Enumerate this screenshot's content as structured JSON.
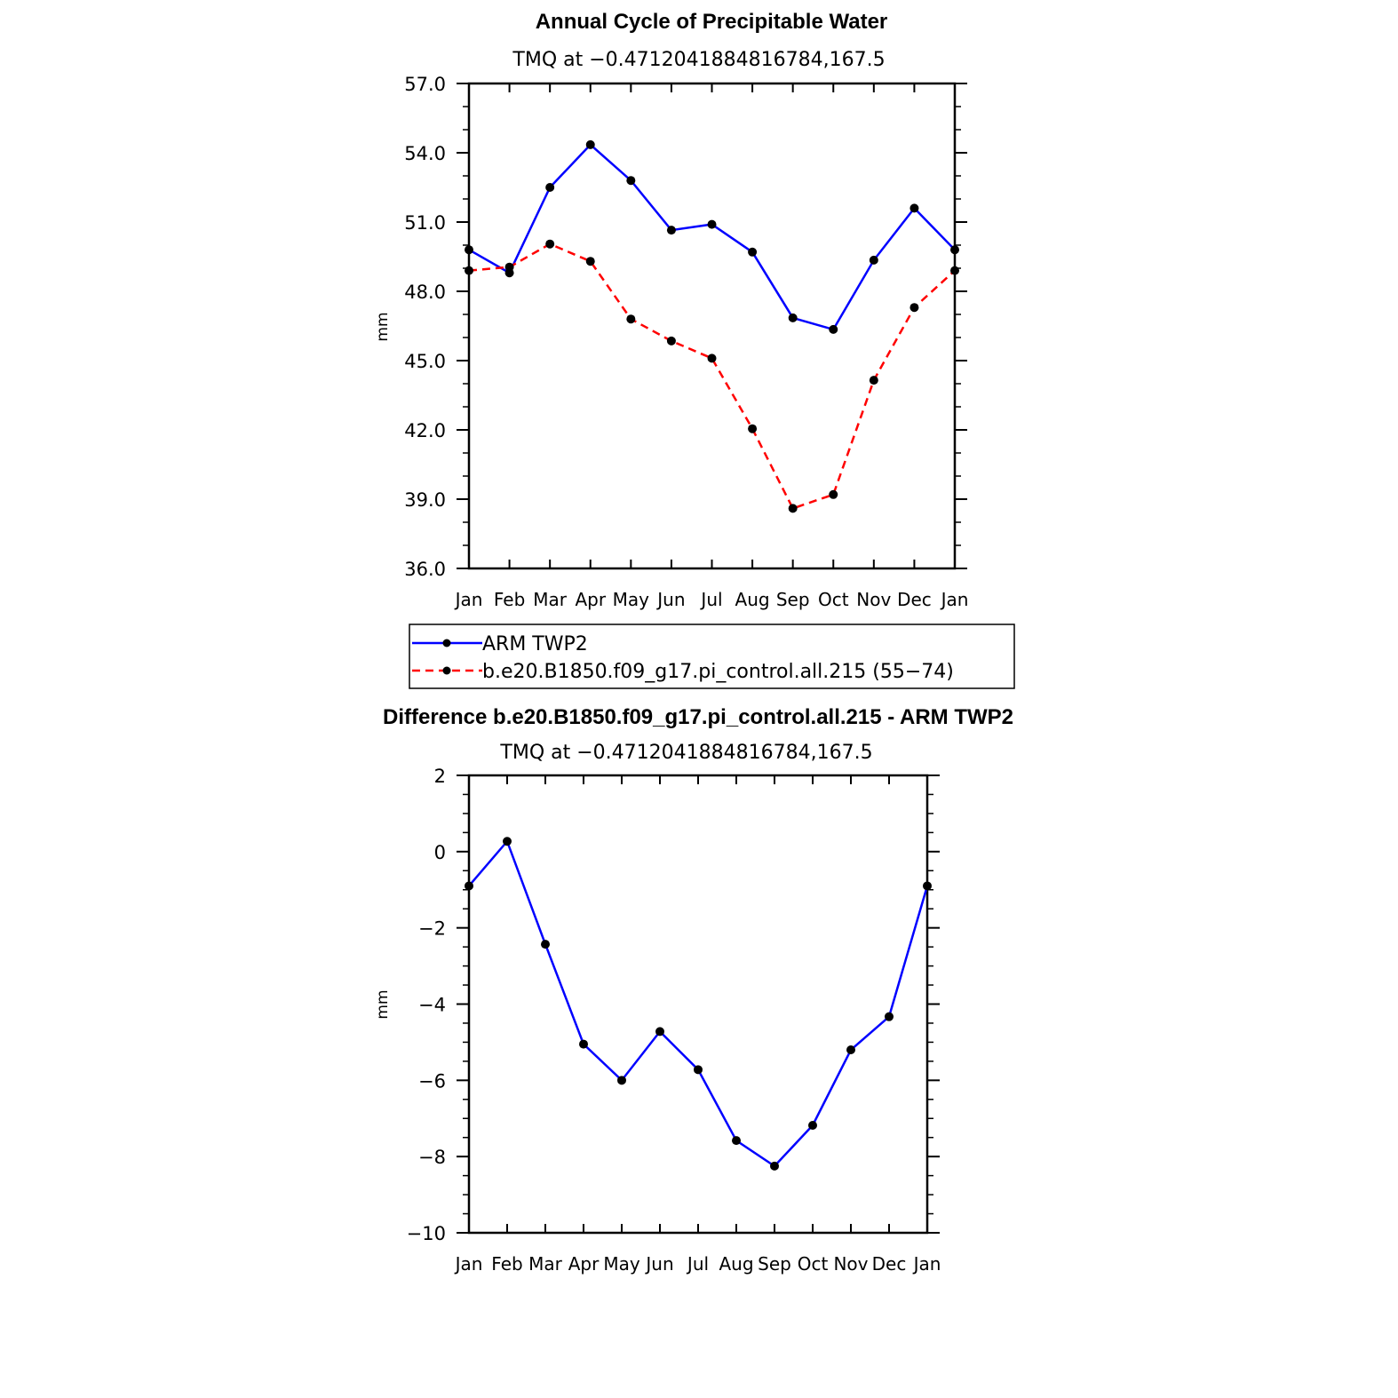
{
  "chart_data": [
    {
      "type": "line",
      "title": "Annual Cycle of Precipitable Water",
      "subtitle": "TMQ at −0.4712041884816784,167.5",
      "xlabel": "",
      "ylabel": "mm",
      "categories": [
        "Jan",
        "Feb",
        "Mar",
        "Apr",
        "May",
        "Jun",
        "Jul",
        "Aug",
        "Sep",
        "Oct",
        "Nov",
        "Dec",
        "Jan"
      ],
      "ylim": [
        36.0,
        57.0
      ],
      "yticks": [
        "36.0",
        "39.0",
        "42.0",
        "45.0",
        "48.0",
        "51.0",
        "54.0",
        "57.0"
      ],
      "series": [
        {
          "name": "ARM TWP2",
          "color": "#0000ff",
          "style": "solid",
          "values": [
            49.8,
            48.8,
            52.5,
            54.35,
            52.8,
            50.65,
            50.9,
            49.7,
            46.85,
            46.35,
            49.35,
            51.6,
            49.8
          ]
        },
        {
          "name": "b.e20.B1850.f09_g17.pi_control.all.215 (55−74)",
          "color": "#ff0000",
          "style": "dashed",
          "values": [
            48.9,
            49.05,
            50.05,
            49.3,
            46.8,
            45.85,
            45.1,
            42.05,
            38.6,
            39.2,
            44.15,
            47.3,
            48.9
          ]
        }
      ]
    },
    {
      "type": "line",
      "title": "Difference b.e20.B1850.f09_g17.pi_control.all.215 - ARM TWP2",
      "subtitle": "TMQ at −0.4712041884816784,167.5",
      "xlabel": "",
      "ylabel": "mm",
      "categories": [
        "Jan",
        "Feb",
        "Mar",
        "Apr",
        "May",
        "Jun",
        "Jul",
        "Aug",
        "Sep",
        "Oct",
        "Nov",
        "Dec",
        "Jan"
      ],
      "ylim": [
        -10,
        2
      ],
      "yticks": [
        "−10",
        "−8",
        "−6",
        "−4",
        "−2",
        "0",
        "2"
      ],
      "series": [
        {
          "name": "Difference",
          "color": "#0000ff",
          "style": "solid",
          "values": [
            -0.9,
            0.27,
            -2.43,
            -5.05,
            -6.0,
            -4.72,
            -5.72,
            -7.58,
            -8.25,
            -7.18,
            -5.2,
            -4.33,
            -0.9
          ]
        }
      ]
    }
  ]
}
